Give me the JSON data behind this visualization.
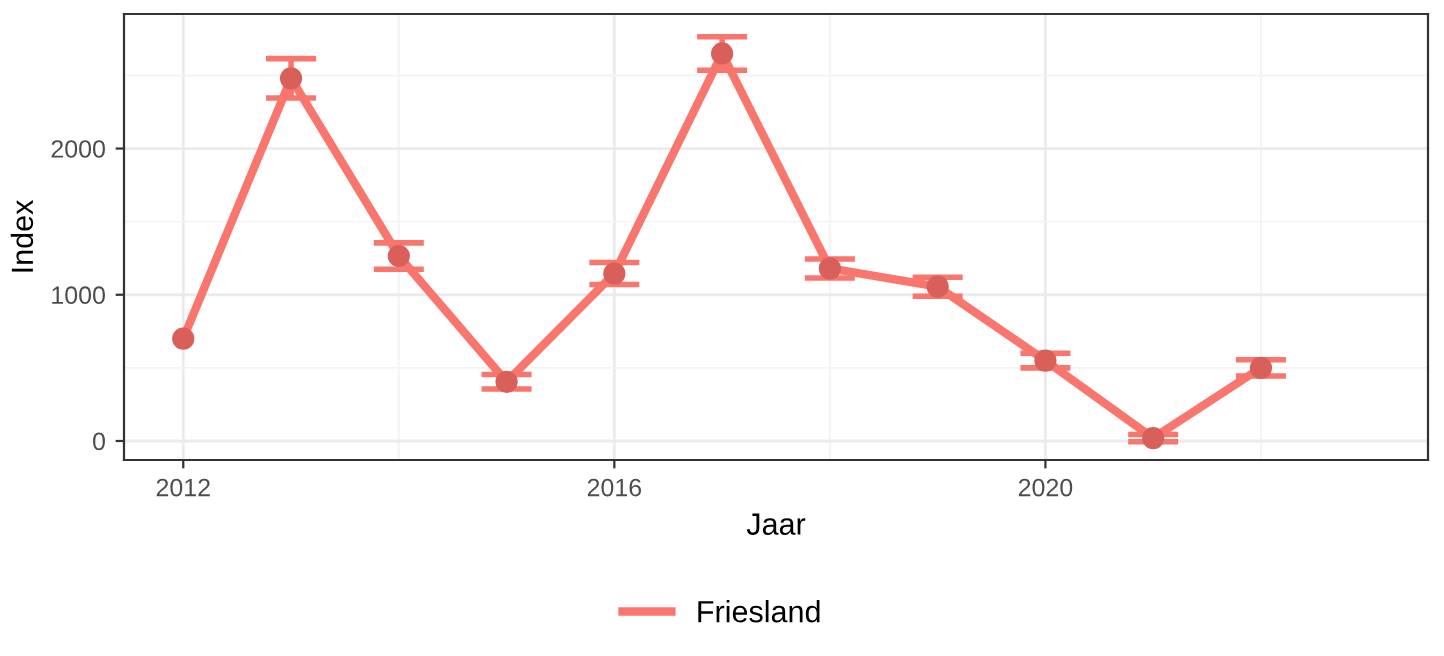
{
  "chart_data": {
    "type": "line",
    "xlabel": "Jaar",
    "ylabel": "Index",
    "x": [
      2012,
      2013,
      2014,
      2015,
      2016,
      2017,
      2018,
      2019,
      2020,
      2021,
      2022
    ],
    "series": [
      {
        "name": "Friesland",
        "color": "#f8766d",
        "values": [
          700,
          2480,
          1265,
          405,
          1145,
          2650,
          1180,
          1055,
          550,
          20,
          500
        ],
        "errors": [
          null,
          135,
          90,
          50,
          75,
          115,
          65,
          65,
          50,
          25,
          55
        ]
      }
    ],
    "xlim": [
      2011.45,
      2023.55
    ],
    "xticks": [
      2012,
      2016,
      2020
    ],
    "ylim": [
      -130,
      2920
    ],
    "yticks": [
      0,
      1000,
      2000
    ],
    "grid": true,
    "legend": "bottom",
    "marker": "circle",
    "line_style": "solid"
  }
}
